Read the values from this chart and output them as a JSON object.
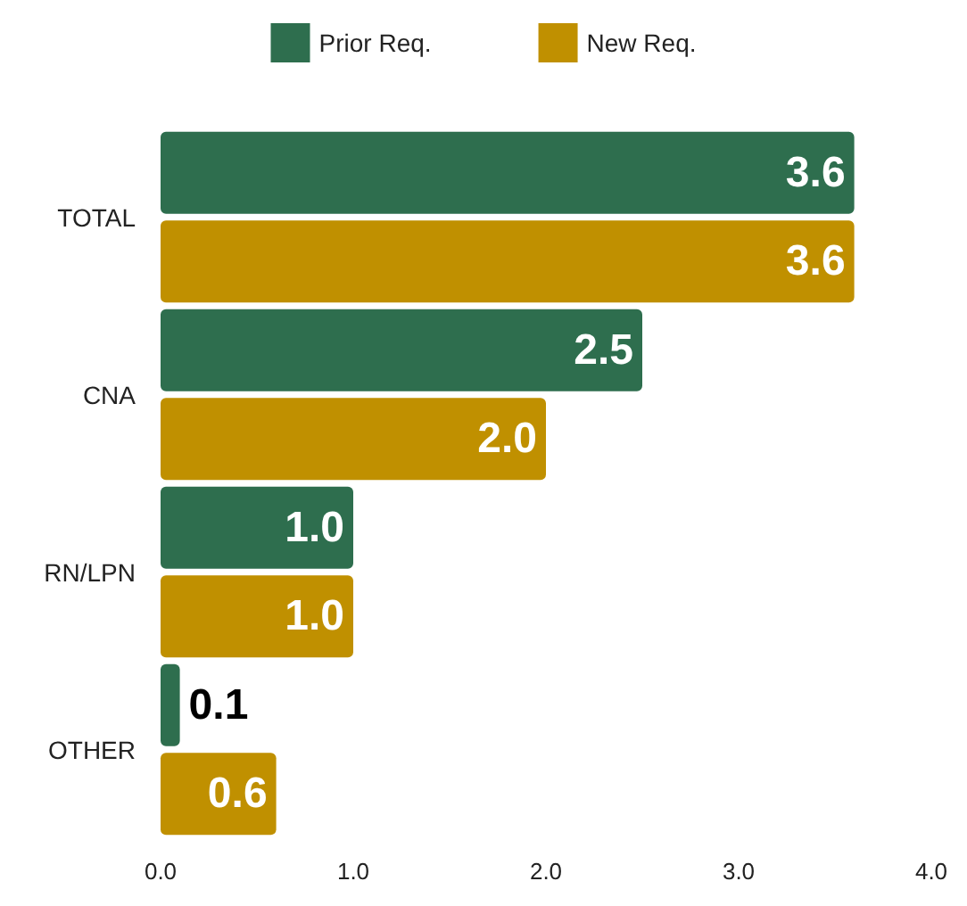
{
  "chart_data": {
    "type": "bar",
    "orientation": "horizontal",
    "categories": [
      "TOTAL",
      "CNA",
      "RN/LPN",
      "OTHER"
    ],
    "series": [
      {
        "name": "Prior Req.",
        "color": "#2e6e4e",
        "values": [
          3.6,
          2.5,
          1.0,
          0.1
        ],
        "value_labels": [
          "3.6",
          "2.5",
          "1.0",
          "0.1"
        ]
      },
      {
        "name": "New Req.",
        "color": "#c09000",
        "values": [
          3.6,
          2.0,
          1.0,
          0.6
        ],
        "value_labels": [
          "3.6",
          "2.0",
          "1.0",
          "0.6"
        ]
      }
    ],
    "xlim": [
      0,
      4
    ],
    "xticks": [
      {
        "value": 0,
        "label": "0.0"
      },
      {
        "value": 1,
        "label": "1.0"
      },
      {
        "value": 2,
        "label": "2.0"
      },
      {
        "value": 3,
        "label": "3.0"
      },
      {
        "value": 4,
        "label": "4.0"
      }
    ],
    "grid": false,
    "legend": "top"
  }
}
